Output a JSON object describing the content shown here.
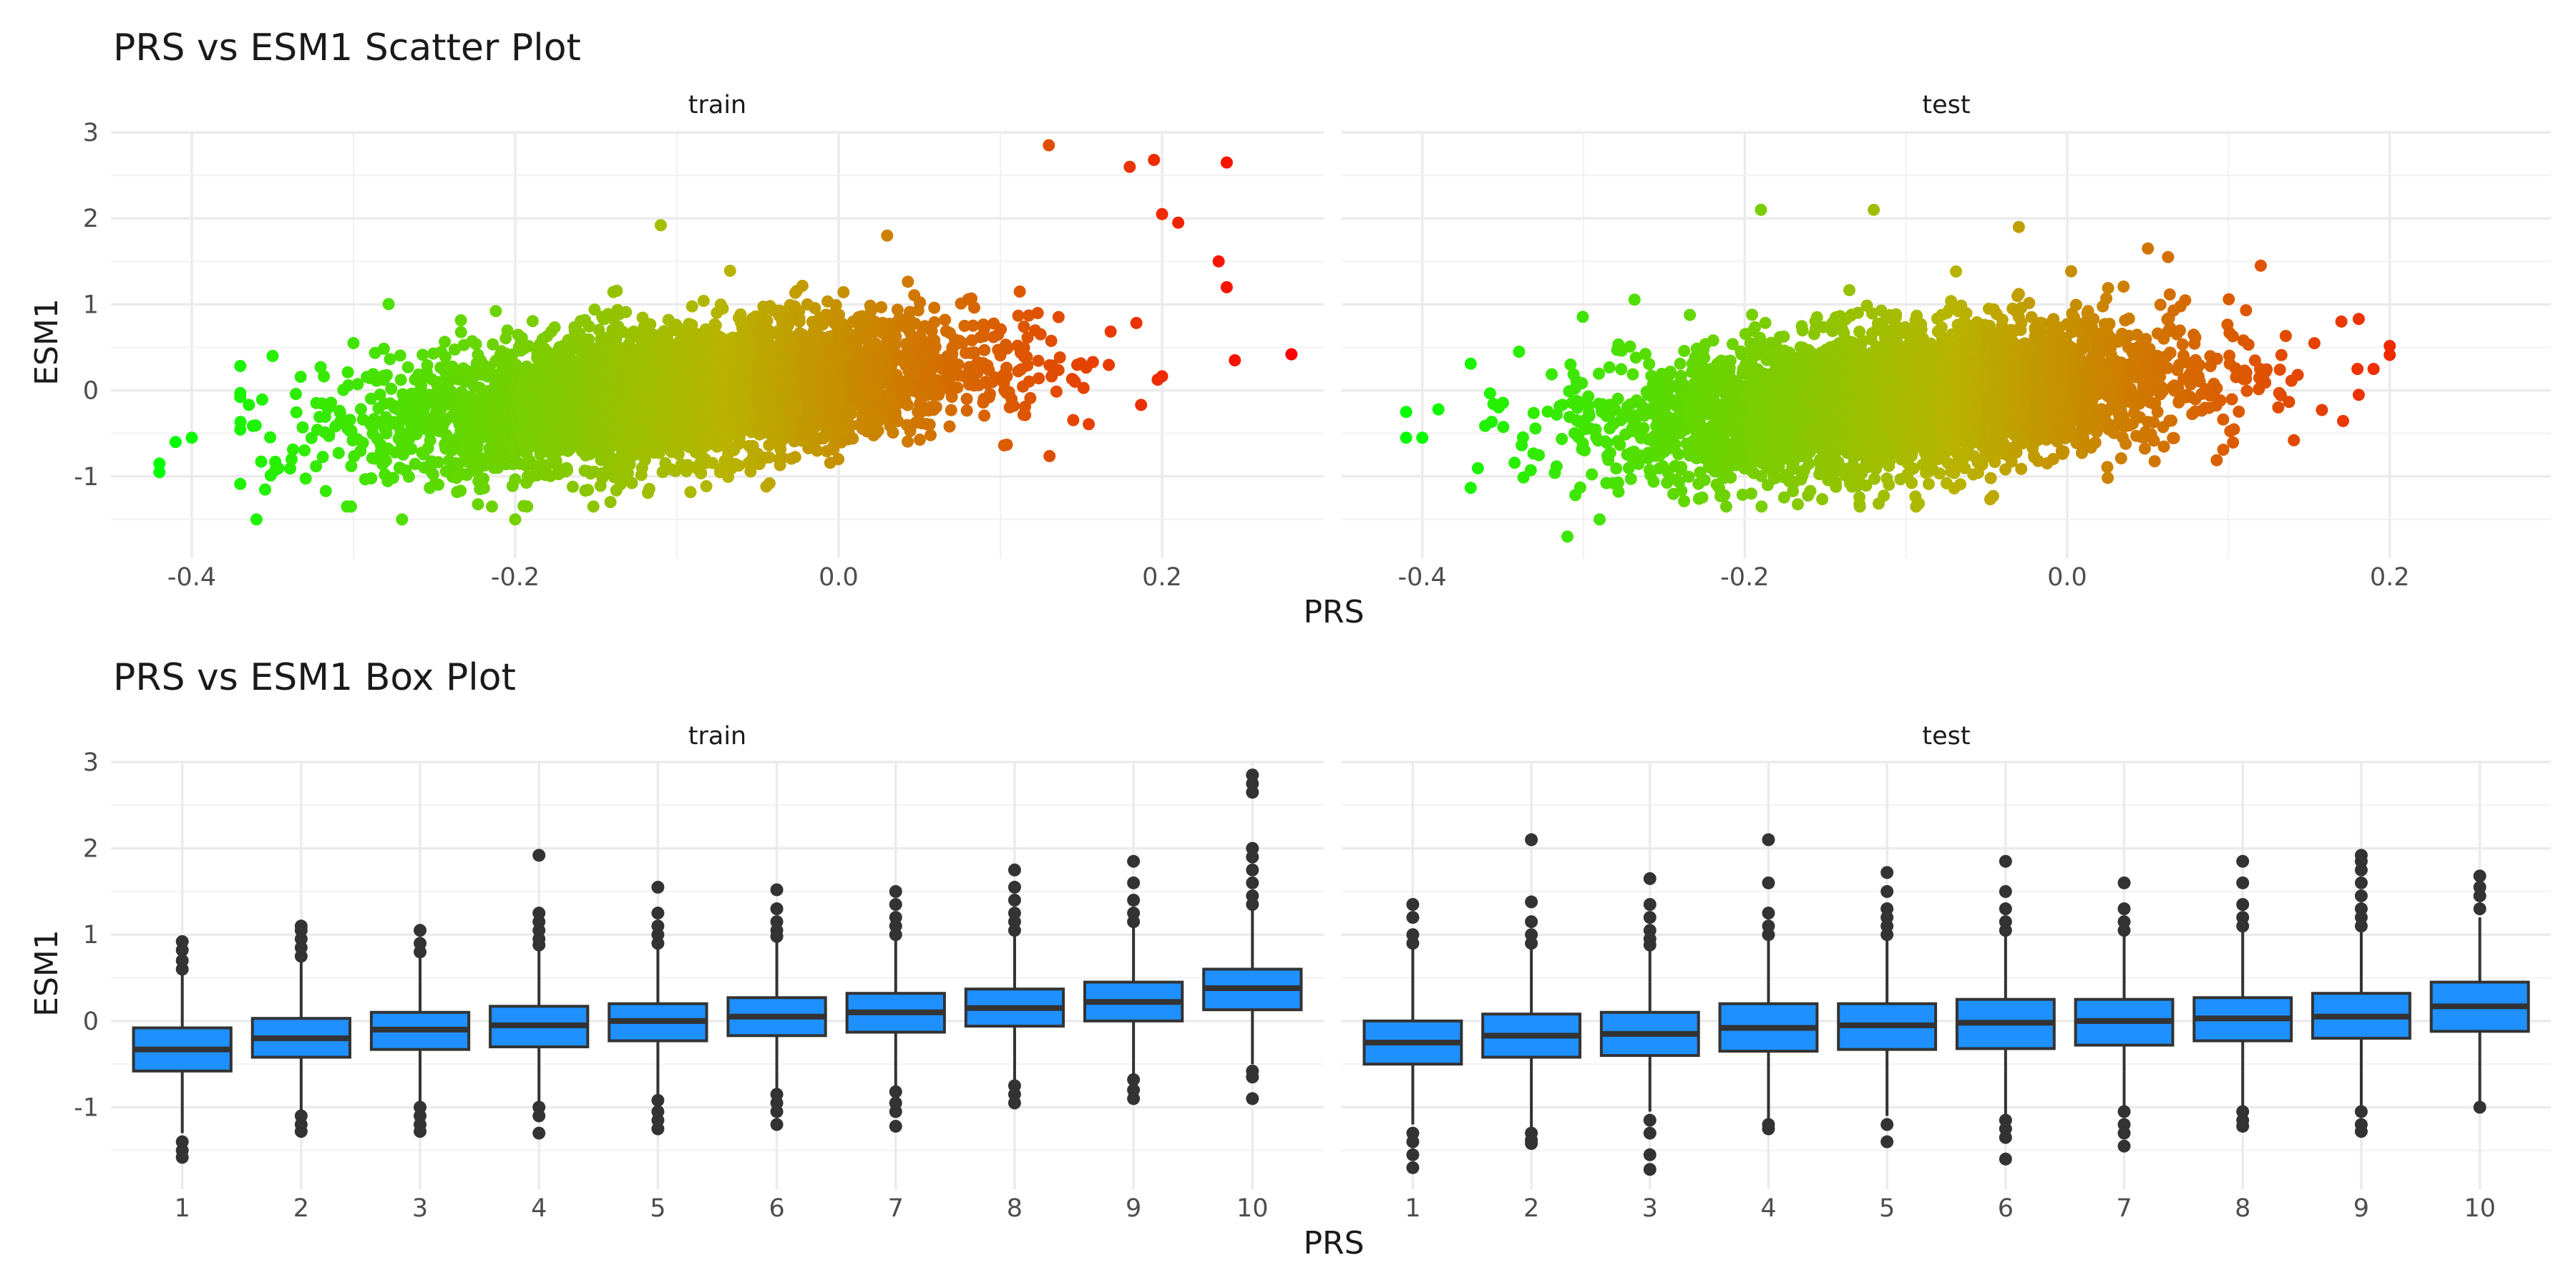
{
  "figure": {
    "scatter_title": "PRS vs ESM1 Scatter Plot",
    "box_title": "PRS vs ESM1 Box Plot",
    "xlabel": "PRS",
    "ylabel": "ESM1"
  },
  "chart_data": [
    {
      "type": "scatter",
      "title": "PRS vs ESM1 Scatter Plot",
      "xlabel": "PRS",
      "ylabel": "ESM1",
      "color_encoding": "PRS (green to red gradient)",
      "colors": {
        "low": "#00ff00",
        "mid": "#b8b400",
        "high": "#ff0000"
      },
      "xlim": [
        -0.45,
        0.3
      ],
      "ylim": [
        -1.95,
        3.0
      ],
      "x_ticks": [
        -0.4,
        -0.2,
        0.0,
        0.2
      ],
      "x_tick_labels": [
        "-0.4",
        "-0.2",
        "0.0",
        "0.2"
      ],
      "y_ticks": [
        -1,
        0,
        1,
        2,
        3
      ],
      "y_tick_labels": [
        "-1",
        "0",
        "1",
        "2",
        "3"
      ],
      "grid": true,
      "panels": [
        {
          "name": "train",
          "trend": {
            "slope": 1.8,
            "intercept": 0.15,
            "x_center": -0.1,
            "x_sd": 0.09,
            "resid_sd": 0.38
          },
          "outliers": [
            {
              "x": -0.42,
              "y": -0.85
            },
            {
              "x": -0.42,
              "y": -0.95
            },
            {
              "x": -0.41,
              "y": -0.6
            },
            {
              "x": -0.4,
              "y": -0.55
            },
            {
              "x": -0.36,
              "y": -1.5
            },
            {
              "x": -0.35,
              "y": 0.4
            },
            {
              "x": -0.3,
              "y": 0.55
            },
            {
              "x": -0.27,
              "y": -1.5
            },
            {
              "x": -0.2,
              "y": -1.5
            },
            {
              "x": -0.11,
              "y": 1.92
            },
            {
              "x": 0.03,
              "y": 1.8
            },
            {
              "x": 0.13,
              "y": 2.85
            },
            {
              "x": 0.18,
              "y": 2.6
            },
            {
              "x": 0.195,
              "y": 2.68
            },
            {
              "x": 0.2,
              "y": 2.05
            },
            {
              "x": 0.21,
              "y": 1.95
            },
            {
              "x": 0.24,
              "y": 2.65
            },
            {
              "x": 0.235,
              "y": 1.5
            },
            {
              "x": 0.24,
              "y": 1.2
            },
            {
              "x": 0.245,
              "y": 0.35
            },
            {
              "x": 0.28,
              "y": 0.42
            }
          ]
        },
        {
          "name": "test",
          "trend": {
            "slope": 1.6,
            "intercept": 0.06,
            "x_center": -0.1,
            "x_sd": 0.085,
            "resid_sd": 0.4
          },
          "outliers": [
            {
              "x": -0.41,
              "y": -0.25
            },
            {
              "x": -0.41,
              "y": -0.55
            },
            {
              "x": -0.4,
              "y": -0.55
            },
            {
              "x": -0.39,
              "y": -0.22
            },
            {
              "x": -0.34,
              "y": 0.45
            },
            {
              "x": -0.31,
              "y": -1.7
            },
            {
              "x": -0.29,
              "y": -1.5
            },
            {
              "x": -0.19,
              "y": 2.1
            },
            {
              "x": -0.12,
              "y": 2.1
            },
            {
              "x": -0.03,
              "y": 1.9
            },
            {
              "x": 0.05,
              "y": 1.65
            },
            {
              "x": 0.12,
              "y": 1.45
            },
            {
              "x": 0.17,
              "y": 0.8
            },
            {
              "x": 0.18,
              "y": 0.25
            },
            {
              "x": 0.19,
              "y": 0.25
            }
          ]
        }
      ]
    },
    {
      "type": "box",
      "title": "PRS vs ESM1 Box Plot",
      "xlabel": "PRS",
      "ylabel": "ESM1",
      "categories": [
        "1",
        "2",
        "3",
        "4",
        "5",
        "6",
        "7",
        "8",
        "9",
        "10"
      ],
      "ylim": [
        -1.95,
        3.0
      ],
      "y_ticks": [
        -1,
        0,
        1,
        2,
        3
      ],
      "y_tick_labels": [
        "-1",
        "0",
        "1",
        "2",
        "3"
      ],
      "box_fill": "#1e90ff",
      "box_stroke": "#333333",
      "grid": true,
      "panels": [
        {
          "name": "train",
          "boxes": [
            {
              "category": "1",
              "min": -1.3,
              "q1": -0.58,
              "median": -0.33,
              "q3": -0.08,
              "max": 0.55,
              "outliers": [
                0.6,
                0.7,
                0.82,
                0.92,
                -1.4,
                -1.5,
                -1.58
              ]
            },
            {
              "category": "2",
              "min": -1.05,
              "q1": -0.42,
              "median": -0.2,
              "q3": 0.03,
              "max": 0.7,
              "outliers": [
                0.75,
                0.85,
                0.95,
                1.05,
                1.1,
                -1.1,
                -1.2,
                -1.28
              ]
            },
            {
              "category": "3",
              "min": -0.95,
              "q1": -0.33,
              "median": -0.1,
              "q3": 0.1,
              "max": 0.75,
              "outliers": [
                0.8,
                0.9,
                1.05,
                -1.0,
                -1.1,
                -1.2,
                -1.28
              ]
            },
            {
              "category": "4",
              "min": -0.95,
              "q1": -0.3,
              "median": -0.05,
              "q3": 0.17,
              "max": 0.82,
              "outliers": [
                0.88,
                0.95,
                1.05,
                1.15,
                1.25,
                1.92,
                -1.0,
                -1.1,
                -1.3
              ]
            },
            {
              "category": "5",
              "min": -0.88,
              "q1": -0.23,
              "median": 0.0,
              "q3": 0.2,
              "max": 0.85,
              "outliers": [
                0.9,
                1.0,
                1.1,
                1.25,
                1.55,
                -0.92,
                -1.05,
                -1.15,
                -1.25
              ]
            },
            {
              "category": "6",
              "min": -0.8,
              "q1": -0.17,
              "median": 0.05,
              "q3": 0.27,
              "max": 0.92,
              "outliers": [
                0.98,
                1.05,
                1.15,
                1.3,
                1.52,
                -0.85,
                -0.95,
                -1.05,
                -1.2
              ]
            },
            {
              "category": "7",
              "min": -0.75,
              "q1": -0.13,
              "median": 0.1,
              "q3": 0.32,
              "max": 0.95,
              "outliers": [
                1.0,
                1.1,
                1.2,
                1.35,
                1.5,
                -0.82,
                -0.95,
                -1.05,
                -1.22
              ]
            },
            {
              "category": "8",
              "min": -0.7,
              "q1": -0.06,
              "median": 0.15,
              "q3": 0.37,
              "max": 1.0,
              "outliers": [
                1.05,
                1.15,
                1.25,
                1.4,
                1.55,
                1.75,
                -0.75,
                -0.85,
                -0.95
              ]
            },
            {
              "category": "9",
              "min": -0.62,
              "q1": 0.0,
              "median": 0.22,
              "q3": 0.45,
              "max": 1.1,
              "outliers": [
                1.15,
                1.25,
                1.4,
                1.6,
                1.85,
                -0.68,
                -0.8,
                -0.9
              ]
            },
            {
              "category": "10",
              "min": -0.5,
              "q1": 0.13,
              "median": 0.38,
              "q3": 0.6,
              "max": 1.3,
              "outliers": [
                1.35,
                1.45,
                1.6,
                1.75,
                1.9,
                2.0,
                2.65,
                2.75,
                2.85,
                -0.58,
                -0.65,
                -0.9
              ]
            }
          ]
        },
        {
          "name": "test",
          "boxes": [
            {
              "category": "1",
              "min": -1.2,
              "q1": -0.5,
              "median": -0.25,
              "q3": 0.0,
              "max": 0.85,
              "outliers": [
                0.9,
                1.0,
                1.2,
                1.35,
                -1.3,
                -1.4,
                -1.55,
                -1.7
              ]
            },
            {
              "category": "2",
              "min": -1.25,
              "q1": -0.42,
              "median": -0.17,
              "q3": 0.08,
              "max": 0.85,
              "outliers": [
                0.9,
                1.0,
                1.15,
                1.38,
                2.1,
                -1.3,
                -1.38,
                -1.42
              ]
            },
            {
              "category": "3",
              "min": -1.05,
              "q1": -0.4,
              "median": -0.15,
              "q3": 0.1,
              "max": 0.82,
              "outliers": [
                0.88,
                0.95,
                1.05,
                1.2,
                1.35,
                1.65,
                -1.15,
                -1.3,
                -1.55,
                -1.72
              ]
            },
            {
              "category": "4",
              "min": -1.15,
              "q1": -0.35,
              "median": -0.08,
              "q3": 0.2,
              "max": 0.95,
              "outliers": [
                1.0,
                1.1,
                1.25,
                1.6,
                2.1,
                -1.2,
                -1.25
              ]
            },
            {
              "category": "5",
              "min": -1.1,
              "q1": -0.33,
              "median": -0.05,
              "q3": 0.2,
              "max": 0.95,
              "outliers": [
                1.0,
                1.1,
                1.2,
                1.3,
                1.5,
                1.72,
                -1.2,
                -1.4
              ]
            },
            {
              "category": "6",
              "min": -1.1,
              "q1": -0.32,
              "median": -0.02,
              "q3": 0.25,
              "max": 0.98,
              "outliers": [
                1.05,
                1.15,
                1.3,
                1.5,
                1.85,
                -1.15,
                -1.25,
                -1.35,
                -1.6
              ]
            },
            {
              "category": "7",
              "min": -1.0,
              "q1": -0.28,
              "median": 0.0,
              "q3": 0.25,
              "max": 1.0,
              "outliers": [
                1.05,
                1.15,
                1.3,
                1.6,
                -1.05,
                -1.2,
                -1.3,
                -1.45
              ]
            },
            {
              "category": "8",
              "min": -1.0,
              "q1": -0.23,
              "median": 0.03,
              "q3": 0.27,
              "max": 1.05,
              "outliers": [
                1.1,
                1.2,
                1.35,
                1.6,
                1.85,
                -1.05,
                -1.15,
                -1.22
              ]
            },
            {
              "category": "9",
              "min": -0.98,
              "q1": -0.2,
              "median": 0.05,
              "q3": 0.32,
              "max": 1.05,
              "outliers": [
                1.1,
                1.2,
                1.3,
                1.45,
                1.6,
                1.75,
                1.85,
                1.92,
                -1.05,
                -1.2,
                -1.28
              ]
            },
            {
              "category": "10",
              "min": -1.0,
              "q1": -0.12,
              "median": 0.17,
              "q3": 0.45,
              "max": 1.2,
              "outliers": [
                1.3,
                1.45,
                1.55,
                1.68,
                -1.0
              ]
            }
          ]
        }
      ]
    }
  ]
}
